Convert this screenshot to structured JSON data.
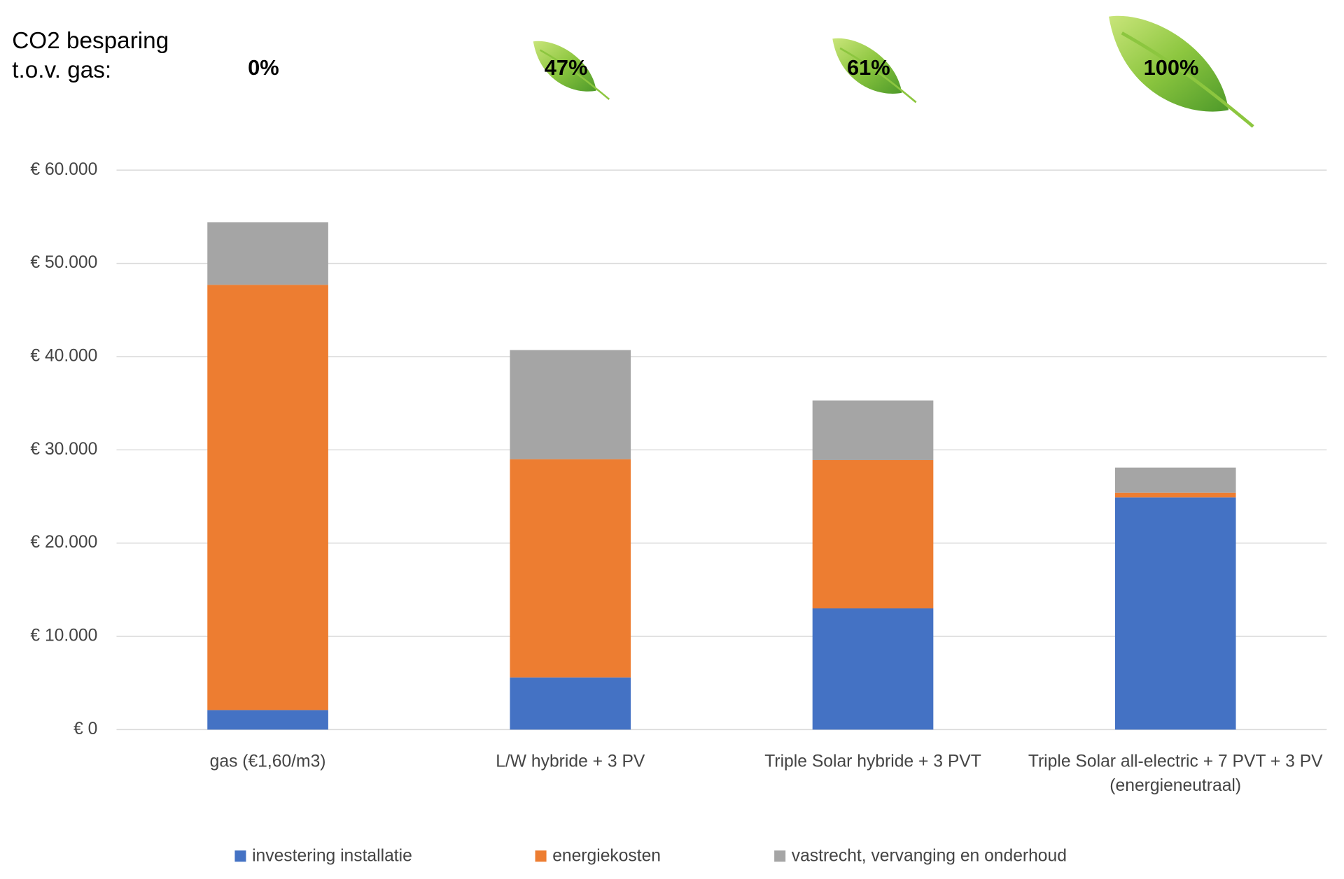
{
  "chart_data": {
    "type": "stacked_bar",
    "annotation_title": "CO2 besparing t.o.v. gas:",
    "annotations": [
      "0%",
      "47%",
      "61%",
      "100%"
    ],
    "categories": [
      "gas (€1,60/m3)",
      "L/W hybride + 3 PV",
      "Triple Solar hybride + 3 PVT",
      "Triple Solar all-electric + 7 PVT + 3 PV (energieneutraal)"
    ],
    "series": [
      {
        "name": "investering installatie",
        "color": "#4472c4",
        "values": [
          2100,
          5600,
          13000,
          24900
        ]
      },
      {
        "name": "energiekosten",
        "color": "#ed7d31",
        "values": [
          45600,
          23400,
          15900,
          500
        ]
      },
      {
        "name": "vastrecht, vervanging en onderhoud",
        "color": "#a5a5a5",
        "values": [
          6700,
          11700,
          6400,
          2700
        ]
      }
    ],
    "ylim": [
      0,
      60000
    ],
    "yticks": [
      {
        "value": 0,
        "label": "€ 0"
      },
      {
        "value": 10000,
        "label": "€ 10.000"
      },
      {
        "value": 20000,
        "label": "€ 20.000"
      },
      {
        "value": 30000,
        "label": "€ 30.000"
      },
      {
        "value": 40000,
        "label": "€ 40.000"
      },
      {
        "value": 50000,
        "label": "€ 50.000"
      },
      {
        "value": 60000,
        "label": "€ 60.000"
      }
    ],
    "grid": true,
    "legend": "bottom"
  }
}
